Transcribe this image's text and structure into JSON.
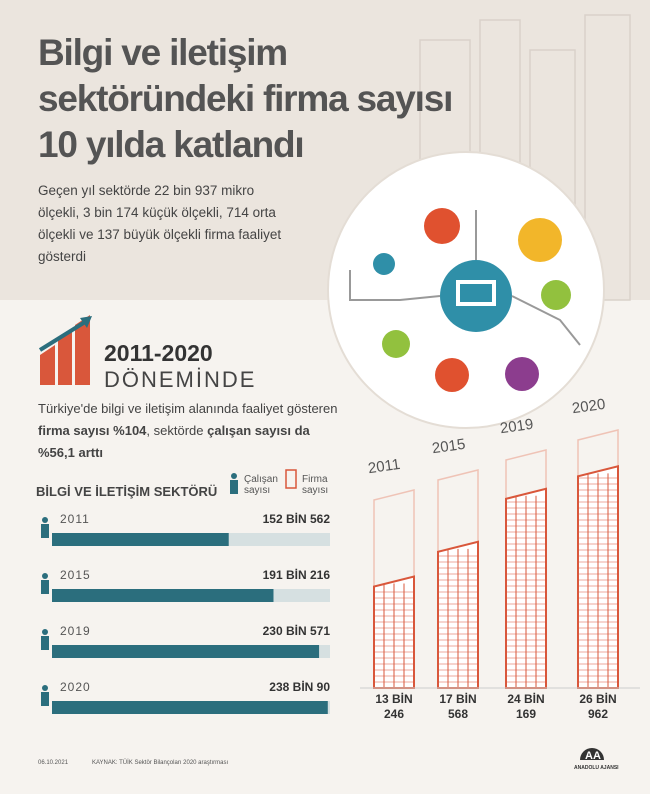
{
  "title": [
    "Bilgi ve iletişim",
    "sektöründeki firma sayısı",
    "10 yılda katlandı"
  ],
  "subtitle": "Geçen yıl sektörde 22 bin 937 mikro ölçekli, 3 bin 174 küçük ölçekli, 714 orta ölçekli ve 137 büyük ölçekli firma faaliyet gösterdi",
  "period": {
    "years": "2011-2020",
    "label": "DÖNEMİNDE"
  },
  "description": [
    {
      "text": "Türkiye'de bilgi ve iletişim alanında faaliyet gösteren ",
      "bold": false
    },
    {
      "text": "firma sayısı %104",
      "bold": true
    },
    {
      "text": ", sektörde ",
      "bold": false
    },
    {
      "text": "çalışan sayısı",
      "bold": true
    },
    {
      "text": " da %56,1 arttı",
      "bold": true
    }
  ],
  "chart_data": [
    {
      "type": "bar",
      "orientation": "horizontal",
      "title": "BİLGİ VE İLETİŞİM SEKTÖRÜ",
      "categories": [
        "2011",
        "2015",
        "2019",
        "2020"
      ],
      "series": [
        {
          "name": "Çalışan sayısı",
          "color": "#2b6e7d",
          "values": [
            152562,
            191216,
            230571,
            238090
          ],
          "value_labels": [
            "152 BİN 562",
            "191 BİN 216",
            "230 BİN 571",
            "238 BİN 90"
          ]
        }
      ],
      "xlim": [
        0,
        240000
      ]
    },
    {
      "type": "bar",
      "orientation": "vertical",
      "categories": [
        "2011",
        "2015",
        "2019",
        "2020"
      ],
      "series": [
        {
          "name": "Firma sayısı",
          "color": "#d9573b",
          "values": [
            13246,
            17568,
            24169,
            26962
          ],
          "value_labels": [
            "13 BİN 246",
            "17 BİN 568",
            "24 BİN 169",
            "26 BİN 962"
          ]
        }
      ],
      "ylim": [
        0,
        28000
      ]
    }
  ],
  "footer": {
    "date": "06.10.2021",
    "source": "KAYNAK: TÜİK Sektör Bilançoları 2020 araştırması",
    "logo": "AA",
    "agency": "ANADOLU AJANSI"
  }
}
